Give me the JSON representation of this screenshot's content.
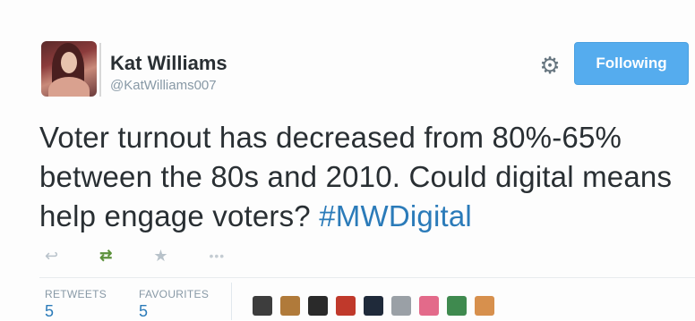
{
  "tweet": {
    "author_name": "Kat Williams",
    "author_handle": "@KatWilliams007",
    "follow_label": "Following",
    "text_main": "Voter turnout has decreased from 80%-65% between the 80s and 2010. Could digital means help engage voters?",
    "hashtag": "#MWDigital"
  },
  "actions": {
    "reply_icon": "reply-icon",
    "retweet_icon": "retweet-icon",
    "favorite_icon": "star-icon",
    "more_icon": "more-icon"
  },
  "stats": {
    "retweets_label": "RETWEETS",
    "retweets_count": "5",
    "favourites_label": "FAVOURITES",
    "favourites_count": "5"
  },
  "colors": {
    "follow_button": "#55acee",
    "hashtag": "#2b7bb9",
    "retweet_active": "#5c913b"
  },
  "favoriters": [
    {
      "color": "#3d3d3d"
    },
    {
      "color": "#b07a3a"
    },
    {
      "color": "#2a2a2a"
    },
    {
      "color": "#c0392b"
    },
    {
      "color": "#1f2a3a"
    },
    {
      "color": "#9aa0a6"
    },
    {
      "color": "#e36a8a"
    },
    {
      "color": "#3f8a4f"
    },
    {
      "color": "#d7904d"
    }
  ]
}
